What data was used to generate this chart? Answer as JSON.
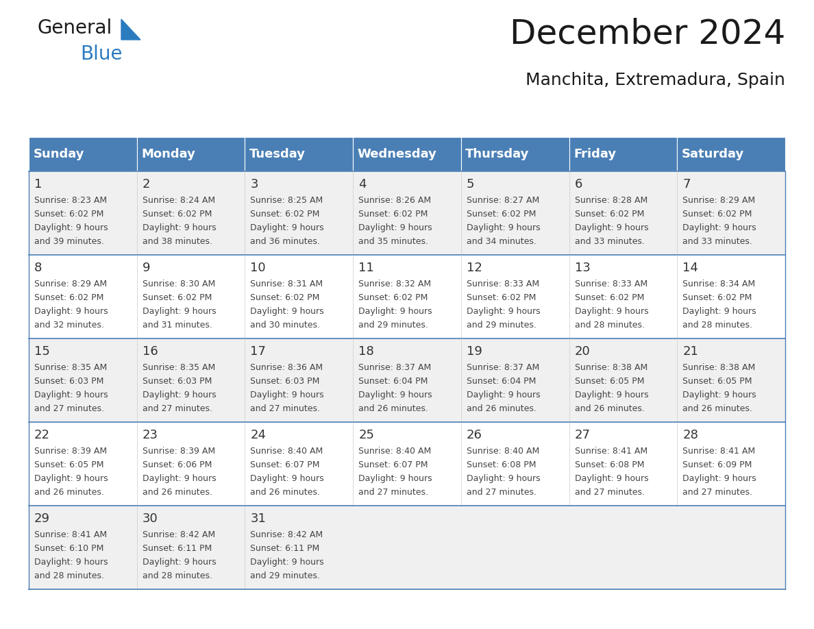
{
  "title": "December 2024",
  "subtitle": "Manchita, Extremadura, Spain",
  "header_color": "#4a7fb5",
  "header_text_color": "#ffffff",
  "days_of_week": [
    "Sunday",
    "Monday",
    "Tuesday",
    "Wednesday",
    "Thursday",
    "Friday",
    "Saturday"
  ],
  "cell_bg_odd": "#f0f0f0",
  "cell_bg_even": "#ffffff",
  "cell_border_color": "#4a7fb5",
  "day_number_color": "#333333",
  "text_color": "#444444",
  "calendar_data": [
    [
      {
        "day": 1,
        "sunrise": "8:23 AM",
        "sunset": "6:02 PM",
        "daylight": "9 hours and 39 minutes."
      },
      {
        "day": 2,
        "sunrise": "8:24 AM",
        "sunset": "6:02 PM",
        "daylight": "9 hours and 38 minutes."
      },
      {
        "day": 3,
        "sunrise": "8:25 AM",
        "sunset": "6:02 PM",
        "daylight": "9 hours and 36 minutes."
      },
      {
        "day": 4,
        "sunrise": "8:26 AM",
        "sunset": "6:02 PM",
        "daylight": "9 hours and 35 minutes."
      },
      {
        "day": 5,
        "sunrise": "8:27 AM",
        "sunset": "6:02 PM",
        "daylight": "9 hours and 34 minutes."
      },
      {
        "day": 6,
        "sunrise": "8:28 AM",
        "sunset": "6:02 PM",
        "daylight": "9 hours and 33 minutes."
      },
      {
        "day": 7,
        "sunrise": "8:29 AM",
        "sunset": "6:02 PM",
        "daylight": "9 hours and 33 minutes."
      }
    ],
    [
      {
        "day": 8,
        "sunrise": "8:29 AM",
        "sunset": "6:02 PM",
        "daylight": "9 hours and 32 minutes."
      },
      {
        "day": 9,
        "sunrise": "8:30 AM",
        "sunset": "6:02 PM",
        "daylight": "9 hours and 31 minutes."
      },
      {
        "day": 10,
        "sunrise": "8:31 AM",
        "sunset": "6:02 PM",
        "daylight": "9 hours and 30 minutes."
      },
      {
        "day": 11,
        "sunrise": "8:32 AM",
        "sunset": "6:02 PM",
        "daylight": "9 hours and 29 minutes."
      },
      {
        "day": 12,
        "sunrise": "8:33 AM",
        "sunset": "6:02 PM",
        "daylight": "9 hours and 29 minutes."
      },
      {
        "day": 13,
        "sunrise": "8:33 AM",
        "sunset": "6:02 PM",
        "daylight": "9 hours and 28 minutes."
      },
      {
        "day": 14,
        "sunrise": "8:34 AM",
        "sunset": "6:02 PM",
        "daylight": "9 hours and 28 minutes."
      }
    ],
    [
      {
        "day": 15,
        "sunrise": "8:35 AM",
        "sunset": "6:03 PM",
        "daylight": "9 hours and 27 minutes."
      },
      {
        "day": 16,
        "sunrise": "8:35 AM",
        "sunset": "6:03 PM",
        "daylight": "9 hours and 27 minutes."
      },
      {
        "day": 17,
        "sunrise": "8:36 AM",
        "sunset": "6:03 PM",
        "daylight": "9 hours and 27 minutes."
      },
      {
        "day": 18,
        "sunrise": "8:37 AM",
        "sunset": "6:04 PM",
        "daylight": "9 hours and 26 minutes."
      },
      {
        "day": 19,
        "sunrise": "8:37 AM",
        "sunset": "6:04 PM",
        "daylight": "9 hours and 26 minutes."
      },
      {
        "day": 20,
        "sunrise": "8:38 AM",
        "sunset": "6:05 PM",
        "daylight": "9 hours and 26 minutes."
      },
      {
        "day": 21,
        "sunrise": "8:38 AM",
        "sunset": "6:05 PM",
        "daylight": "9 hours and 26 minutes."
      }
    ],
    [
      {
        "day": 22,
        "sunrise": "8:39 AM",
        "sunset": "6:05 PM",
        "daylight": "9 hours and 26 minutes."
      },
      {
        "day": 23,
        "sunrise": "8:39 AM",
        "sunset": "6:06 PM",
        "daylight": "9 hours and 26 minutes."
      },
      {
        "day": 24,
        "sunrise": "8:40 AM",
        "sunset": "6:07 PM",
        "daylight": "9 hours and 26 minutes."
      },
      {
        "day": 25,
        "sunrise": "8:40 AM",
        "sunset": "6:07 PM",
        "daylight": "9 hours and 27 minutes."
      },
      {
        "day": 26,
        "sunrise": "8:40 AM",
        "sunset": "6:08 PM",
        "daylight": "9 hours and 27 minutes."
      },
      {
        "day": 27,
        "sunrise": "8:41 AM",
        "sunset": "6:08 PM",
        "daylight": "9 hours and 27 minutes."
      },
      {
        "day": 28,
        "sunrise": "8:41 AM",
        "sunset": "6:09 PM",
        "daylight": "9 hours and 27 minutes."
      }
    ],
    [
      {
        "day": 29,
        "sunrise": "8:41 AM",
        "sunset": "6:10 PM",
        "daylight": "9 hours and 28 minutes."
      },
      {
        "day": 30,
        "sunrise": "8:42 AM",
        "sunset": "6:11 PM",
        "daylight": "9 hours and 28 minutes."
      },
      {
        "day": 31,
        "sunrise": "8:42 AM",
        "sunset": "6:11 PM",
        "daylight": "9 hours and 29 minutes."
      },
      null,
      null,
      null,
      null
    ]
  ],
  "logo_text_general": "General",
  "logo_text_blue": "Blue",
  "logo_general_color": "#1a1a1a",
  "logo_blue_color": "#2b7bbf",
  "logo_triangle_color": "#2b7bbf",
  "title_fontsize": 36,
  "subtitle_fontsize": 18,
  "header_fontsize": 13,
  "day_num_fontsize": 13,
  "cell_fontsize": 9
}
